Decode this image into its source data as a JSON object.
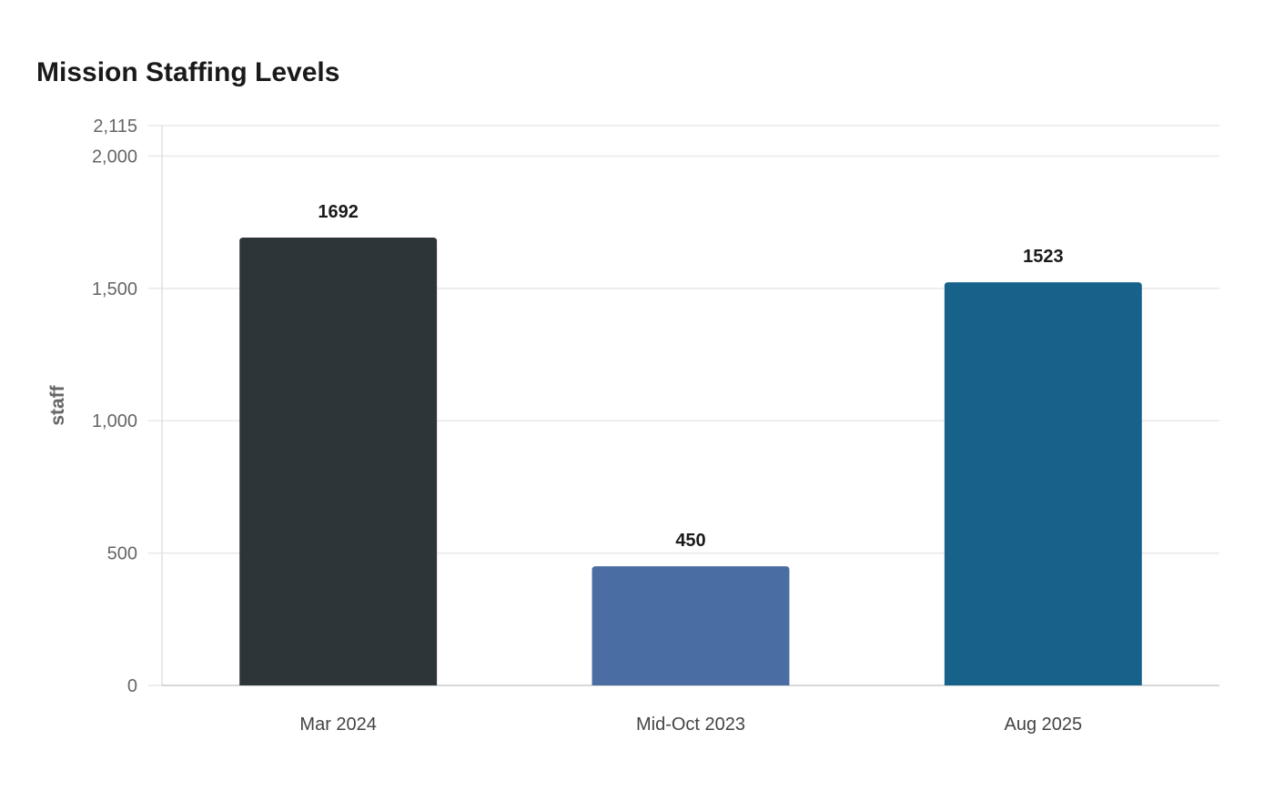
{
  "chart_data": {
    "type": "bar",
    "title": "Mission Staffing Levels",
    "xlabel": "",
    "ylabel": "staff",
    "categories": [
      "Mar 2024",
      "Mid-Oct 2023",
      "Aug 2025"
    ],
    "values": [
      1692,
      450,
      1523
    ],
    "data_labels": [
      "1692",
      "450",
      "1523"
    ],
    "colors": [
      "#2d3538",
      "#4a6da3",
      "#17628a"
    ],
    "ylim": [
      0,
      2115
    ],
    "yticks": [
      0,
      500,
      1000,
      1500,
      2000,
      2115
    ],
    "ytick_labels": [
      "0",
      "500",
      "1,000",
      "1,500",
      "2,000",
      "2,115"
    ],
    "grid": true,
    "legend": "none"
  }
}
